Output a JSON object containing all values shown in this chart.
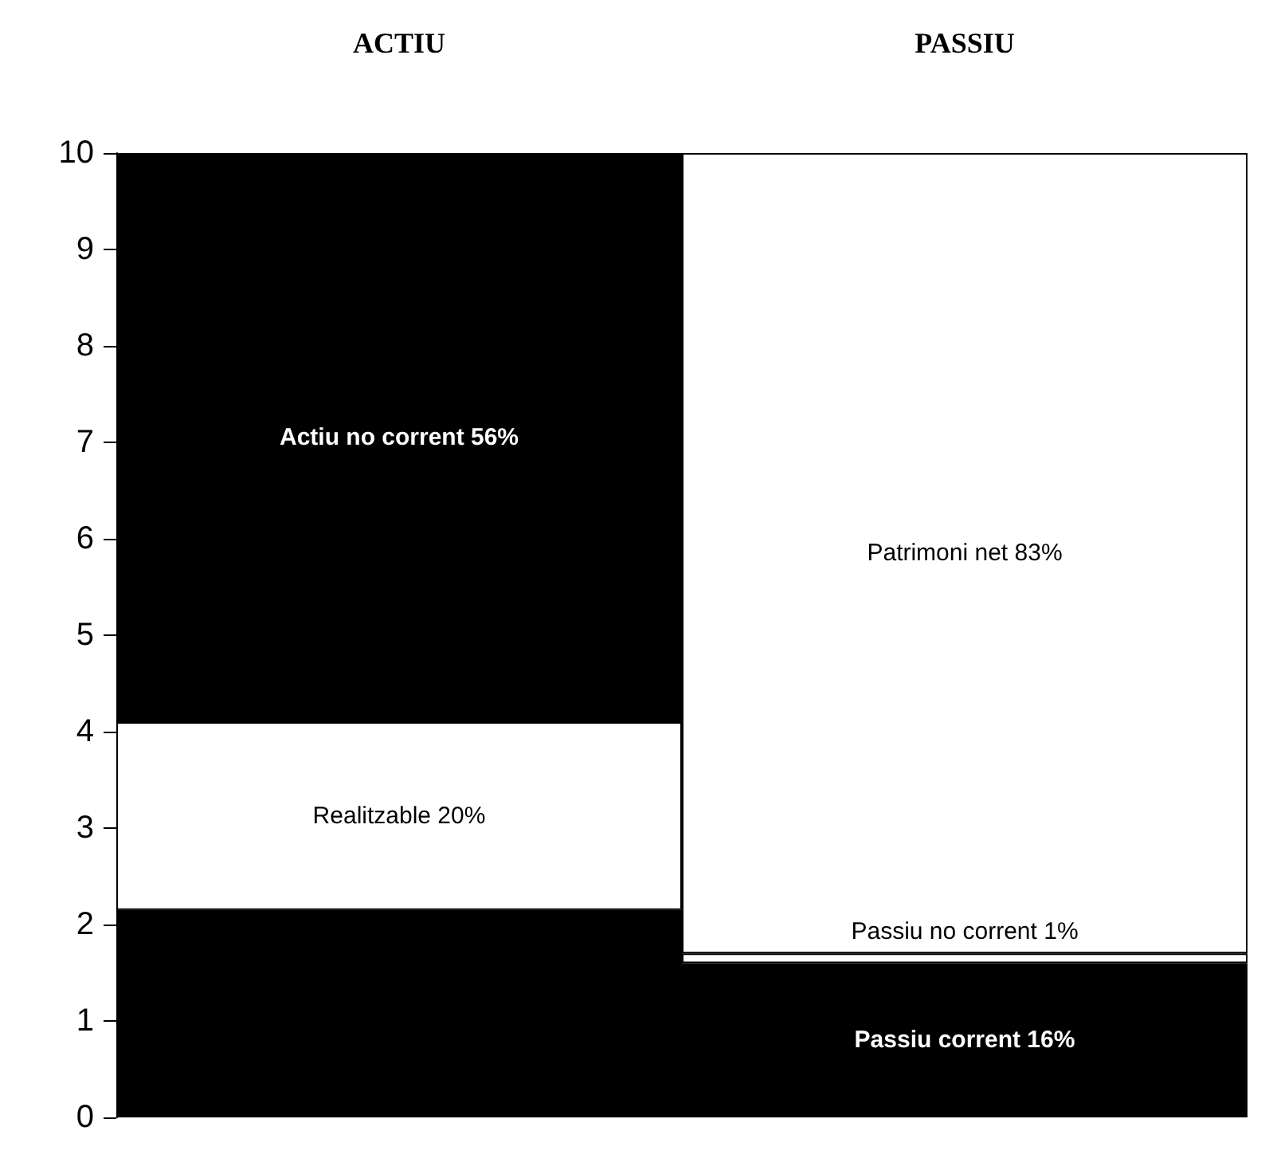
{
  "chart_data": {
    "type": "bar",
    "stacked": true,
    "categories": [
      "ACTIU",
      "PASSIU"
    ],
    "ylim": [
      0,
      10
    ],
    "yticks": [
      0,
      1,
      2,
      3,
      4,
      5,
      6,
      7,
      8,
      9,
      10
    ],
    "grid": false,
    "series": [
      {
        "colors": [
          "#000000",
          "#000000"
        ],
        "values": [
          2.15,
          1.6
        ],
        "value_labels": [
          null,
          "Passiu corrent 16%"
        ]
      },
      {
        "colors": [
          "#ffffff",
          "#ffffff"
        ],
        "values": [
          1.95,
          0.1
        ],
        "value_labels": [
          "Realitzable 20%",
          "Passiu no corrent 1%"
        ]
      },
      {
        "colors": [
          "#000000",
          "#ffffff"
        ],
        "values": [
          5.9,
          8.3
        ],
        "value_labels": [
          "Actiu no corrent 56%",
          "Patrimoni net 83%"
        ]
      }
    ]
  }
}
